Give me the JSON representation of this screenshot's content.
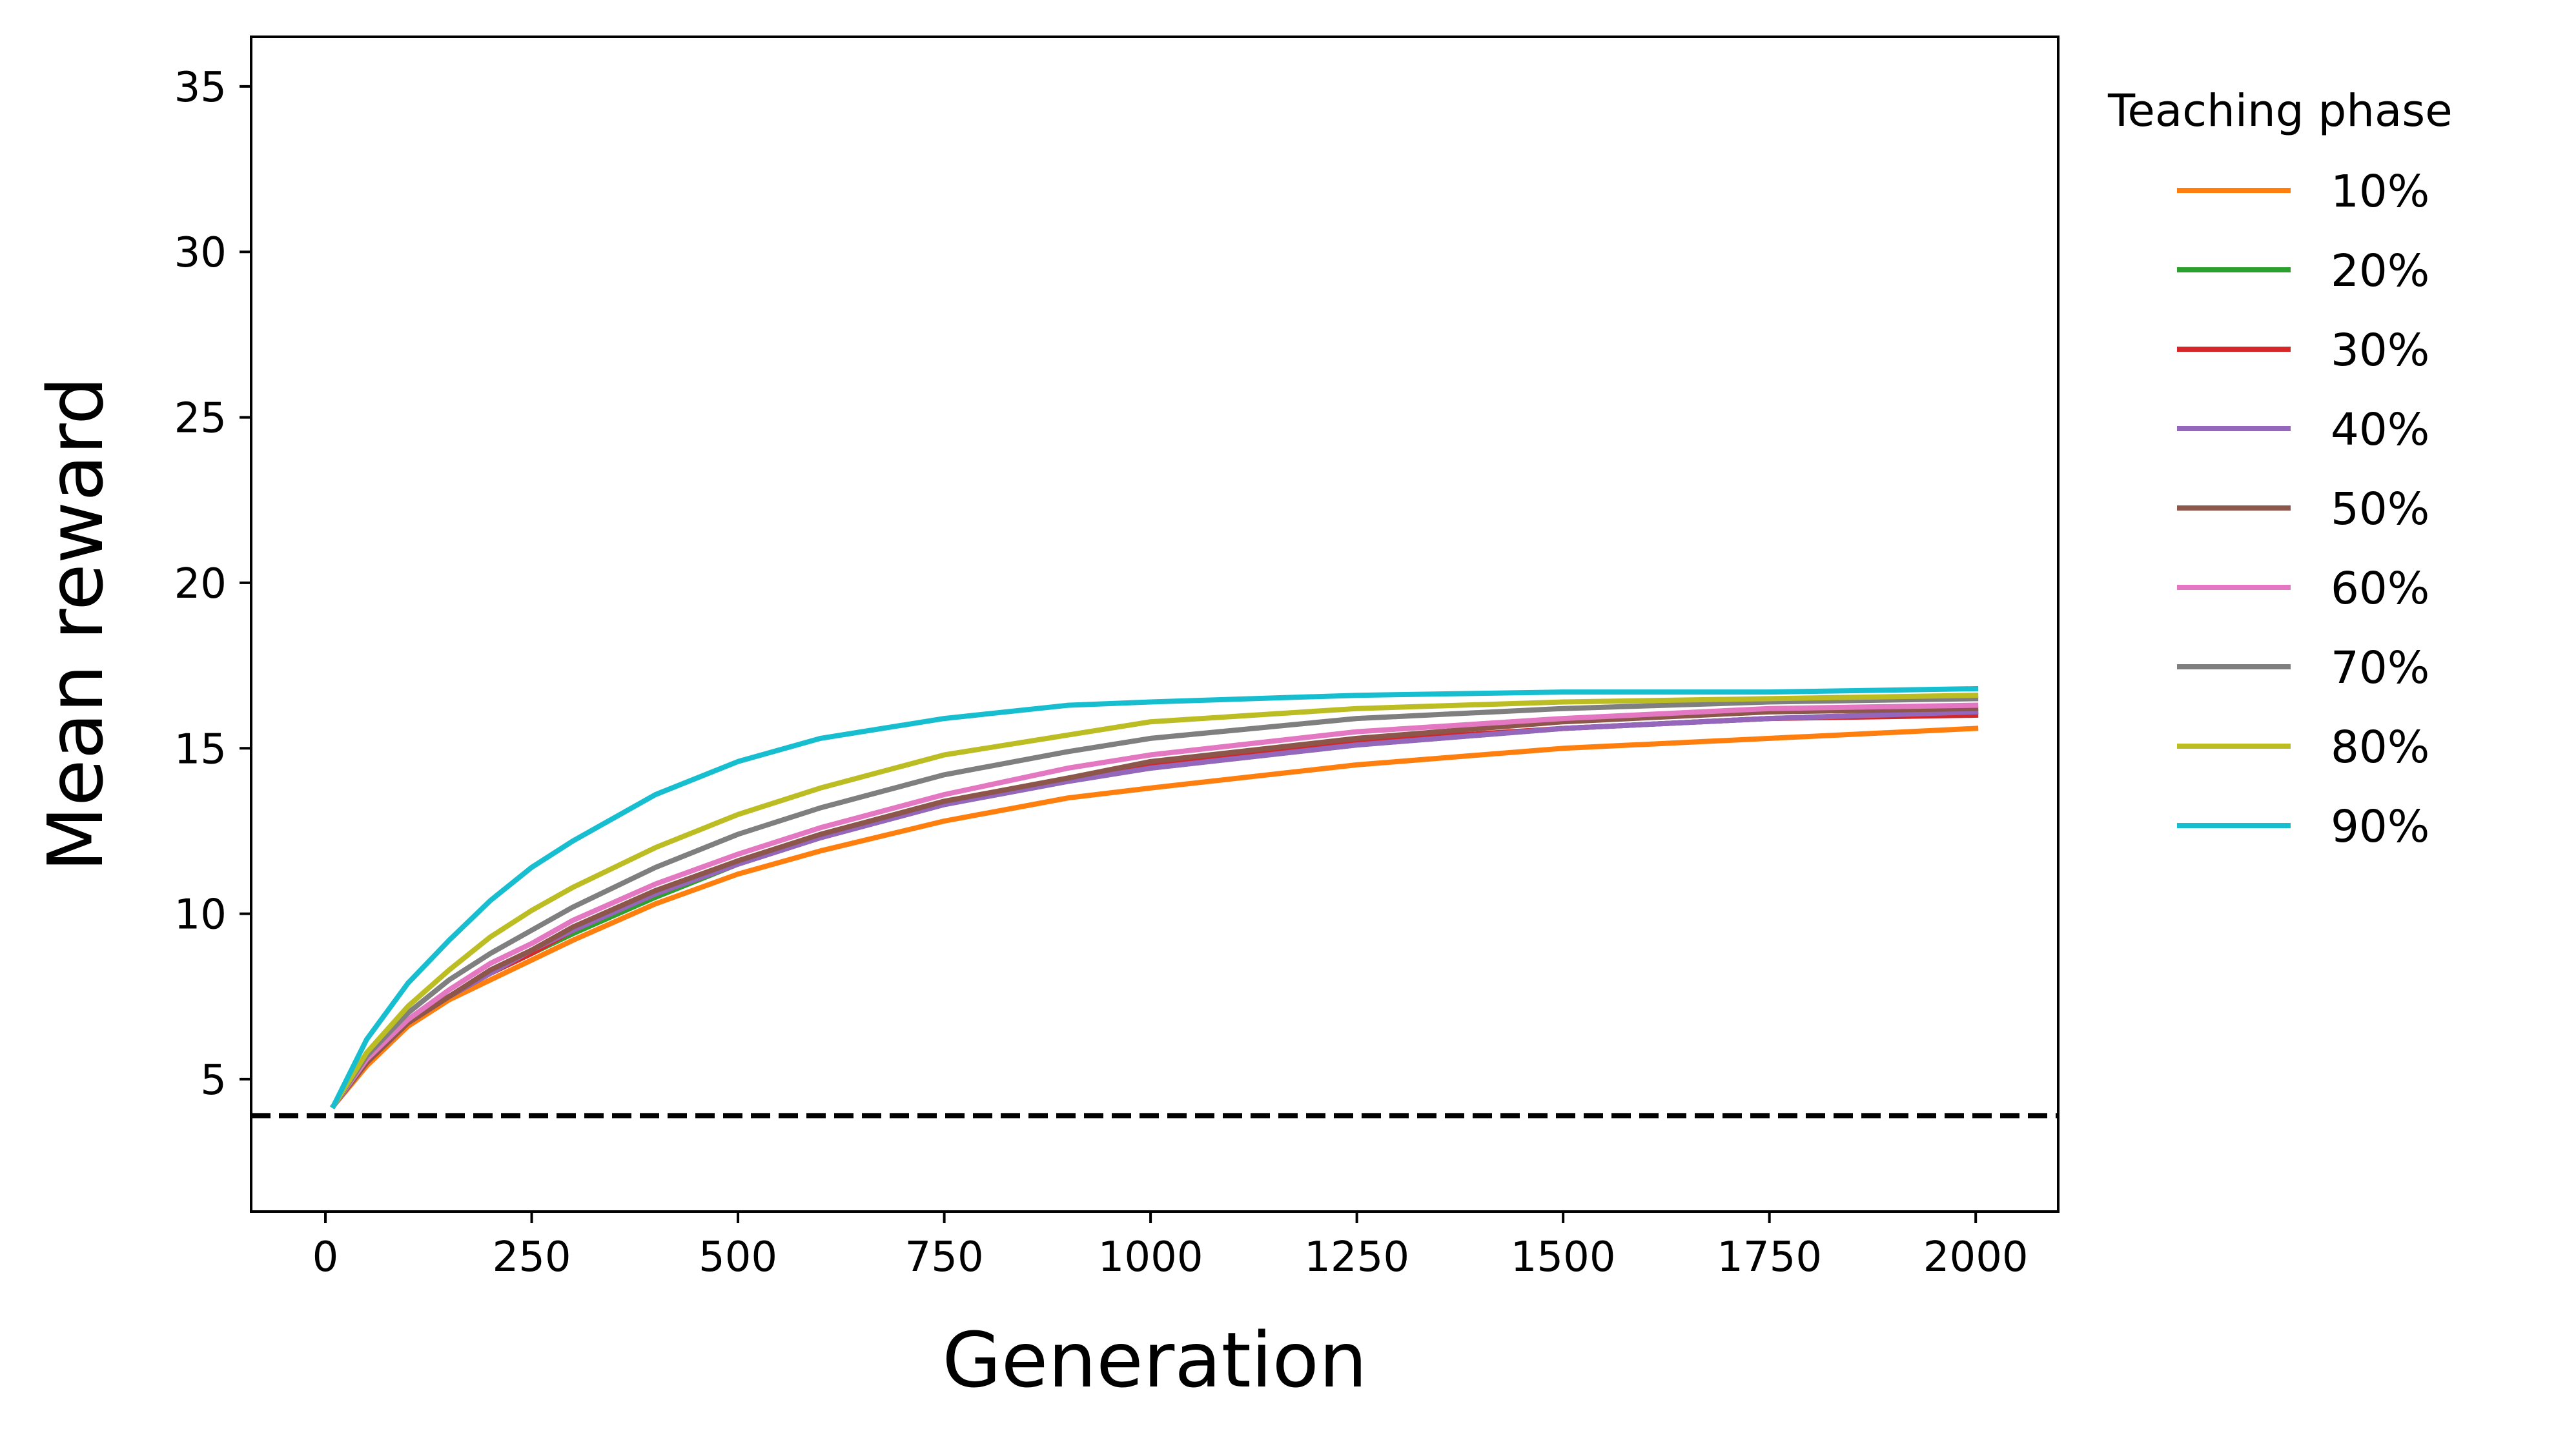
{
  "chart_data": {
    "type": "line",
    "title": "",
    "xlabel": "Generation",
    "ylabel": "Mean reward",
    "xlim": [
      -90,
      2100
    ],
    "ylim": [
      1,
      36.5
    ],
    "xticks": [
      0,
      250,
      500,
      750,
      1000,
      1250,
      1500,
      1750,
      2000
    ],
    "yticks": [
      5,
      10,
      15,
      20,
      25,
      30,
      35
    ],
    "grid": false,
    "legend": {
      "title": "Teaching phase",
      "placement": "outside-right"
    },
    "baseline": {
      "y": 3.9,
      "style": "dashed",
      "color": "#000000"
    },
    "x": [
      10,
      50,
      100,
      150,
      200,
      250,
      300,
      400,
      500,
      600,
      750,
      900,
      1000,
      1250,
      1500,
      1750,
      2000
    ],
    "series": [
      {
        "name": "10%",
        "color": "#ff7f0e",
        "values": [
          4.2,
          5.4,
          6.6,
          7.4,
          8.0,
          8.6,
          9.2,
          10.3,
          11.2,
          11.9,
          12.8,
          13.5,
          13.8,
          14.5,
          15.0,
          15.3,
          15.6
        ]
      },
      {
        "name": "20%",
        "color": "#2ca02c",
        "values": [
          4.2,
          5.5,
          6.7,
          7.5,
          8.2,
          8.8,
          9.4,
          10.5,
          11.5,
          12.3,
          13.3,
          14.0,
          14.4,
          15.1,
          15.6,
          15.9,
          16.1
        ]
      },
      {
        "name": "30%",
        "color": "#d62728",
        "values": [
          4.2,
          5.5,
          6.7,
          7.5,
          8.2,
          8.8,
          9.5,
          10.6,
          11.5,
          12.3,
          13.3,
          14.1,
          14.5,
          15.2,
          15.6,
          15.9,
          16.0
        ]
      },
      {
        "name": "40%",
        "color": "#9467bd",
        "values": [
          4.2,
          5.5,
          6.7,
          7.5,
          8.2,
          8.9,
          9.5,
          10.6,
          11.5,
          12.3,
          13.3,
          14.0,
          14.4,
          15.1,
          15.6,
          15.9,
          16.1
        ]
      },
      {
        "name": "50%",
        "color": "#8c564b",
        "values": [
          4.2,
          5.5,
          6.7,
          7.5,
          8.3,
          8.9,
          9.6,
          10.7,
          11.6,
          12.4,
          13.4,
          14.1,
          14.6,
          15.3,
          15.8,
          16.1,
          16.2
        ]
      },
      {
        "name": "60%",
        "color": "#e377c2",
        "values": [
          4.2,
          5.6,
          6.8,
          7.7,
          8.5,
          9.1,
          9.8,
          10.9,
          11.8,
          12.6,
          13.6,
          14.4,
          14.8,
          15.5,
          15.9,
          16.2,
          16.3
        ]
      },
      {
        "name": "70%",
        "color": "#7f7f7f",
        "values": [
          4.2,
          5.7,
          7.0,
          8.0,
          8.8,
          9.5,
          10.2,
          11.4,
          12.4,
          13.2,
          14.2,
          14.9,
          15.3,
          15.9,
          16.2,
          16.4,
          16.5
        ]
      },
      {
        "name": "80%",
        "color": "#bcbd22",
        "values": [
          4.2,
          5.8,
          7.2,
          8.3,
          9.3,
          10.1,
          10.8,
          12.0,
          13.0,
          13.8,
          14.8,
          15.4,
          15.8,
          16.2,
          16.4,
          16.5,
          16.6
        ]
      },
      {
        "name": "90%",
        "color": "#17becf",
        "values": [
          4.2,
          6.2,
          7.9,
          9.2,
          10.4,
          11.4,
          12.2,
          13.6,
          14.6,
          15.3,
          15.9,
          16.3,
          16.4,
          16.6,
          16.7,
          16.7,
          16.8
        ]
      }
    ]
  }
}
